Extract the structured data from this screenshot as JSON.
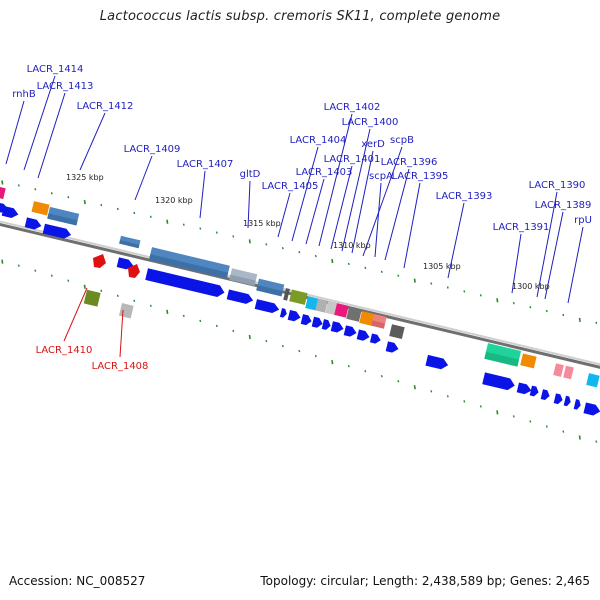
{
  "title": "Lactococcus lactis subsp. cremoris SK11, complete genome",
  "footer": {
    "accession": "Accession: NC_008527",
    "stats": "Topology: circular; Length: 2,438,589 bp; Genes: 2,465"
  },
  "colors": {
    "forward_label": "#1f1fbf",
    "reverse_label": "#d41414",
    "cds_arrow": "#0a14e6",
    "tick": "#2a8a2a",
    "backbone": "#8a8a8a"
  },
  "scale_labels": [
    "1325 kbp",
    "1320 kbp",
    "1315 kbp",
    "1310 kbp",
    "1305 kbp",
    "1300 kbp"
  ],
  "forward_labels": [
    "rnhB",
    "LACR_1414",
    "LACR_1413",
    "LACR_1412",
    "LACR_1409",
    "LACR_1407",
    "gltD",
    "LACR_1405",
    "LACR_1404",
    "LACR_1403",
    "LACR_1402",
    "LACR_1401",
    "LACR_1400",
    "xerD",
    "scpB",
    "scpA",
    "LACR_1396",
    "LACR_1395",
    "LACR_1393",
    "LACR_1391",
    "LACR_1390",
    "LACR_1389",
    "rpU"
  ],
  "reverse_labels": [
    "LACR_1410",
    "LACR_1408"
  ]
}
